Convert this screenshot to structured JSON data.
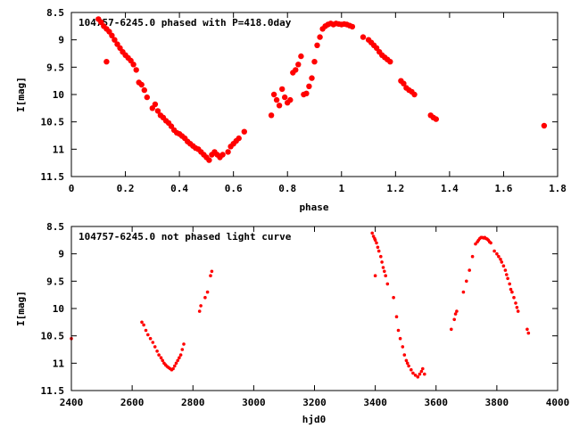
{
  "chart_data": [
    {
      "type": "scatter",
      "title": "104757-6245.0 phased with P=418.0day",
      "xlabel": "phase",
      "ylabel": "I[mag]",
      "xlim": [
        0,
        1.8
      ],
      "ylim": [
        8.5,
        11.5
      ],
      "y_inverted": true,
      "x_ticks": [
        "0",
        "0.2",
        "0.4",
        "0.6",
        "0.8",
        "1",
        "1.2",
        "1.4",
        "1.6",
        "1.8"
      ],
      "y_ticks": [
        "8.5",
        "9",
        "9.5",
        "10",
        "10.5",
        "11",
        "11.5"
      ],
      "marker_color": "#ff0000",
      "marker": "large-dot",
      "grid": false,
      "x": [
        0.1,
        0.11,
        0.12,
        0.13,
        0.14,
        0.15,
        0.13,
        0.16,
        0.17,
        0.18,
        0.19,
        0.2,
        0.21,
        0.22,
        0.23,
        0.24,
        0.25,
        0.26,
        0.27,
        0.28,
        0.3,
        0.31,
        0.32,
        0.33,
        0.34,
        0.35,
        0.36,
        0.37,
        0.38,
        0.39,
        0.4,
        0.41,
        0.42,
        0.43,
        0.44,
        0.45,
        0.46,
        0.47,
        0.48,
        0.49,
        0.5,
        0.51,
        0.52,
        0.53,
        0.54,
        0.55,
        0.56,
        0.58,
        0.59,
        0.6,
        0.61,
        0.62,
        0.64,
        0.74,
        0.75,
        0.76,
        0.77,
        0.78,
        0.79,
        0.8,
        0.81,
        0.82,
        0.83,
        0.84,
        0.85,
        0.86,
        0.87,
        0.88,
        0.89,
        0.9,
        0.91,
        0.92,
        0.93,
        0.94,
        0.95,
        0.96,
        0.97,
        0.98,
        0.99,
        1.0,
        1.01,
        1.02,
        1.03,
        1.04,
        1.08,
        1.1,
        1.11,
        1.12,
        1.13,
        1.14,
        1.15,
        1.16,
        1.17,
        1.18,
        1.22,
        1.23,
        1.24,
        1.25,
        1.26,
        1.27,
        1.33,
        1.34,
        1.35,
        1.75
      ],
      "y": [
        8.62,
        8.68,
        8.75,
        8.8,
        8.85,
        8.92,
        9.4,
        9.0,
        9.08,
        9.15,
        9.22,
        9.28,
        9.33,
        9.38,
        9.45,
        9.55,
        9.78,
        9.82,
        9.92,
        10.05,
        10.25,
        10.18,
        10.3,
        10.38,
        10.42,
        10.48,
        10.52,
        10.58,
        10.65,
        10.7,
        10.72,
        10.76,
        10.8,
        10.86,
        10.9,
        10.94,
        10.98,
        11.0,
        11.05,
        11.1,
        11.15,
        11.2,
        11.1,
        11.05,
        11.1,
        11.15,
        11.1,
        11.05,
        10.95,
        10.9,
        10.85,
        10.8,
        10.68,
        10.38,
        10.0,
        10.1,
        10.2,
        9.9,
        10.05,
        10.15,
        10.1,
        9.6,
        9.55,
        9.45,
        9.3,
        10.0,
        9.98,
        9.85,
        9.7,
        9.4,
        9.1,
        8.95,
        8.8,
        8.75,
        8.72,
        8.7,
        8.72,
        8.7,
        8.71,
        8.72,
        8.71,
        8.72,
        8.74,
        8.76,
        8.95,
        9.0,
        9.05,
        9.1,
        9.15,
        9.22,
        9.28,
        9.32,
        9.36,
        9.4,
        9.75,
        9.8,
        9.88,
        9.92,
        9.95,
        10.0,
        10.38,
        10.42,
        10.45,
        10.57
      ]
    },
    {
      "type": "scatter",
      "title": "104757-6245.0 not phased light curve",
      "xlabel": "hjd0",
      "ylabel": "I[mag]",
      "xlim": [
        2400,
        4000
      ],
      "ylim": [
        8.5,
        11.5
      ],
      "y_inverted": true,
      "x_ticks": [
        "2400",
        "2600",
        "2800",
        "3000",
        "3200",
        "3400",
        "3600",
        "3800",
        "4000"
      ],
      "y_ticks": [
        "8.5",
        "9",
        "9.5",
        "10",
        "10.5",
        "11",
        "11.5"
      ],
      "marker_color": "#ff0000",
      "marker": "small-dot",
      "grid": false,
      "x": [
        2400,
        2632,
        2638,
        2645,
        2652,
        2660,
        2668,
        2675,
        2682,
        2688,
        2695,
        2700,
        2705,
        2710,
        2715,
        2720,
        2725,
        2730,
        2735,
        2740,
        2745,
        2750,
        2755,
        2760,
        2765,
        2770,
        2822,
        2826,
        2840,
        2848,
        2858,
        2862,
        3390,
        3394,
        3398,
        3400,
        3404,
        3408,
        3412,
        3418,
        3422,
        3426,
        3430,
        3434,
        3440,
        3460,
        3470,
        3476,
        3482,
        3490,
        3496,
        3502,
        3506,
        3510,
        3518,
        3524,
        3532,
        3540,
        3546,
        3552,
        3556,
        3562,
        3400,
        3650,
        3660,
        3664,
        3668,
        3690,
        3700,
        3710,
        3720,
        3730,
        3736,
        3740,
        3744,
        3748,
        3752,
        3756,
        3760,
        3764,
        3768,
        3772,
        3776,
        3780,
        3792,
        3800,
        3806,
        3812,
        3816,
        3822,
        3828,
        3832,
        3836,
        3842,
        3846,
        3850,
        3856,
        3862,
        3866,
        3870,
        3900,
        3904
      ],
      "y": [
        10.55,
        10.25,
        10.3,
        10.4,
        10.48,
        10.55,
        10.62,
        10.7,
        10.78,
        10.85,
        10.9,
        10.95,
        11.0,
        11.03,
        11.06,
        11.08,
        11.1,
        11.12,
        11.1,
        11.05,
        11.0,
        10.95,
        10.9,
        10.85,
        10.75,
        10.65,
        10.05,
        9.95,
        9.8,
        9.7,
        9.4,
        9.32,
        8.62,
        8.68,
        8.72,
        8.75,
        8.8,
        8.88,
        8.95,
        9.05,
        9.15,
        9.25,
        9.32,
        9.4,
        9.55,
        9.8,
        10.15,
        10.4,
        10.55,
        10.7,
        10.85,
        10.95,
        11.0,
        11.05,
        11.12,
        11.18,
        11.22,
        11.25,
        11.2,
        11.15,
        11.1,
        11.2,
        9.4,
        10.38,
        10.2,
        10.1,
        10.05,
        9.7,
        9.5,
        9.3,
        9.05,
        8.82,
        8.78,
        8.75,
        8.72,
        8.7,
        8.7,
        8.71,
        8.7,
        8.72,
        8.73,
        8.75,
        8.78,
        8.8,
        8.95,
        9.0,
        9.05,
        9.1,
        9.15,
        9.22,
        9.3,
        9.38,
        9.45,
        9.55,
        9.65,
        9.7,
        9.8,
        9.9,
        9.98,
        10.05,
        10.38,
        10.45
      ]
    }
  ]
}
